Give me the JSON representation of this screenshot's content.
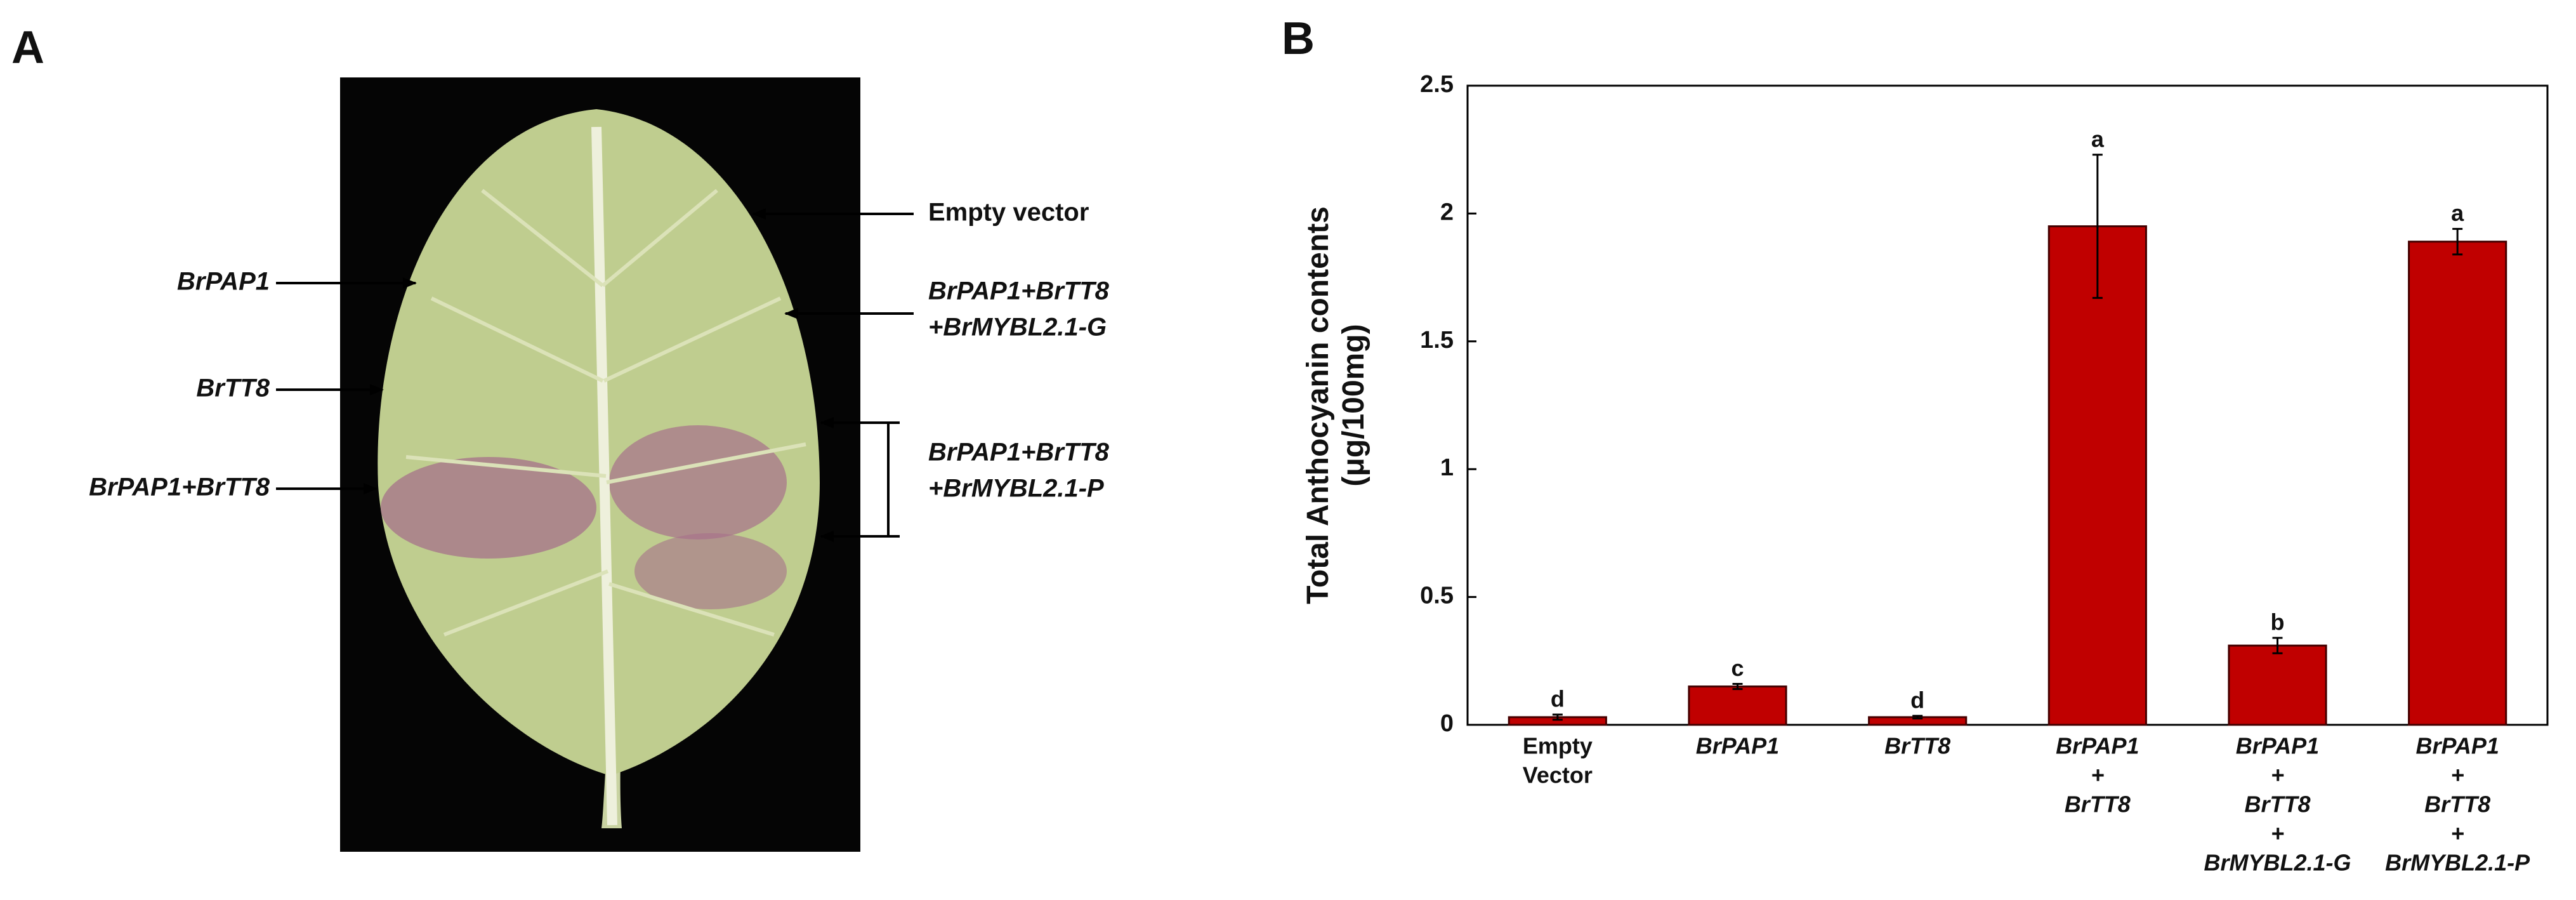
{
  "panels": [
    "A",
    "B"
  ],
  "panel_a": {
    "left_labels": [
      "BrPAP1",
      "BrTT8",
      "BrPAP1+BrTT8"
    ],
    "right_labels": [
      [
        "Empty vector"
      ],
      [
        "BrPAP1+BrTT8",
        "+BrMYBL2.1-G"
      ],
      [
        "BrPAP1+BrTT8",
        "+BrMYBL2.1-P"
      ]
    ]
  },
  "chart_data": {
    "type": "bar",
    "ylabel": [
      "Total Anthocyanin contents",
      "(μg/100mg)"
    ],
    "categories": [
      [
        "Empty",
        "Vector"
      ],
      [
        "BrPAP1"
      ],
      [
        "BrTT8"
      ],
      [
        "BrPAP1",
        "+",
        "BrTT8"
      ],
      [
        "BrPAP1",
        "+",
        "BrTT8",
        "+",
        "BrMYBL2.1-G"
      ],
      [
        "BrPAP1",
        "+",
        "BrTT8",
        "+",
        "BrMYBL2.1-P"
      ]
    ],
    "values": [
      0.03,
      0.15,
      0.03,
      1.95,
      0.31,
      1.89
    ],
    "errors": [
      0.01,
      0.01,
      0.005,
      0.28,
      0.03,
      0.05
    ],
    "letters": [
      "d",
      "c",
      "d",
      "a",
      "b",
      "a"
    ],
    "color": "#c00000",
    "ylim": [
      0,
      2.5
    ],
    "yticks": [
      0,
      0.5,
      1,
      1.5,
      2,
      2.5
    ]
  }
}
